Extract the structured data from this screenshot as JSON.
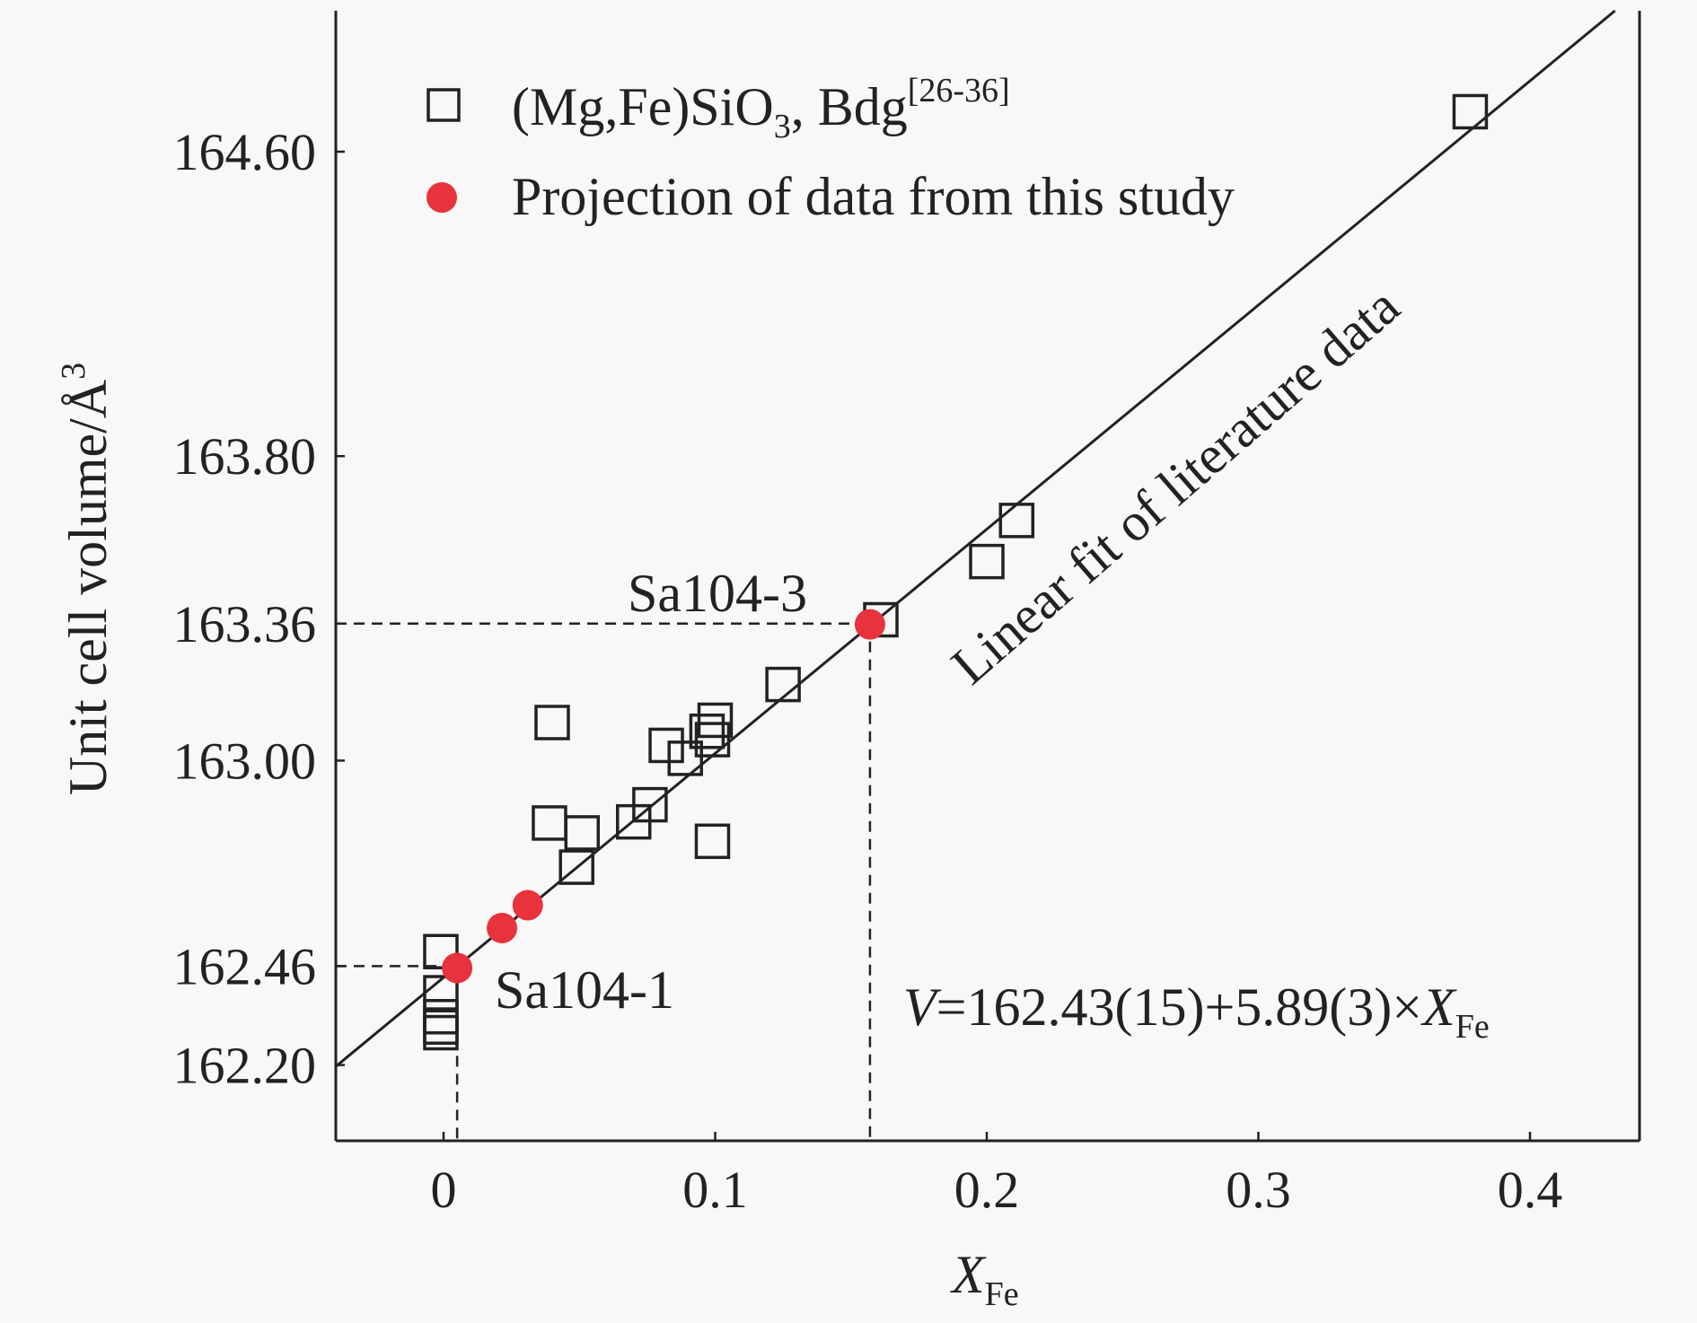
{
  "chart_data": {
    "type": "scatter",
    "xlabel": "X",
    "xlabel_sub": "Fe",
    "ylabel": "Unit cell volume/Å",
    "ylabel_sup": "3",
    "xlim": [
      -0.04,
      0.44
    ],
    "ylim": [
      162.0,
      165.0
    ],
    "grid": false,
    "legend_placement": "top-left",
    "x_ticks": [
      "0",
      "0.1",
      "0.2",
      "0.3",
      "0.4"
    ],
    "x_tick_values": [
      0,
      0.1,
      0.2,
      0.3,
      0.4
    ],
    "y_ticks": [
      "162.20",
      "162.46",
      "163.00",
      "163.36",
      "163.80",
      "164.60"
    ],
    "y_tick_values": [
      162.2,
      162.46,
      163.0,
      163.36,
      163.8,
      164.6
    ],
    "series": [
      {
        "name": "(Mg,Fe)SiO",
        "name_sub": "3",
        "name_tail": ", Bdg",
        "name_sup": "[26-36]",
        "marker": "open-square",
        "color": "#222222",
        "points": [
          [
            0.378,
            164.705
          ],
          [
            0.211,
            163.631
          ],
          [
            0.2,
            163.523
          ],
          [
            0.161,
            163.37
          ],
          [
            0.125,
            163.2
          ],
          [
            0.04,
            163.1
          ],
          [
            0.1,
            163.106
          ],
          [
            0.097,
            163.077
          ],
          [
            0.099,
            163.055
          ],
          [
            0.082,
            163.04
          ],
          [
            0.089,
            163.006
          ],
          [
            0.076,
            162.884
          ],
          [
            0.07,
            162.839
          ],
          [
            0.039,
            162.836
          ],
          [
            0.051,
            162.81
          ],
          [
            0.099,
            162.788
          ],
          [
            0.049,
            162.72
          ],
          [
            -0.001,
            162.498
          ],
          [
            -0.001,
            162.39
          ],
          [
            -0.001,
            162.327
          ],
          [
            -0.001,
            162.3
          ],
          [
            -0.001,
            162.285
          ]
        ]
      },
      {
        "name": "Projection of data from this study",
        "marker": "filled-circle",
        "color": "#e8323c",
        "points": [
          [
            0.005,
            162.455
          ],
          [
            0.0215,
            162.56
          ],
          [
            0.031,
            162.62
          ],
          [
            0.157,
            163.358
          ]
        ]
      }
    ],
    "fit": {
      "intercept": 162.43,
      "slope": 5.89,
      "label": "Linear fit of literature data"
    },
    "equation": {
      "v": "V",
      "rest": "=162.43(15)+5.89(3)×",
      "x": "X",
      "sub": "Fe"
    },
    "annotations": [
      {
        "text": "Sa104-1",
        "x": 0.005,
        "y": 162.46
      },
      {
        "text": "Sa104-3",
        "x": 0.157,
        "y": 163.36
      }
    ]
  }
}
